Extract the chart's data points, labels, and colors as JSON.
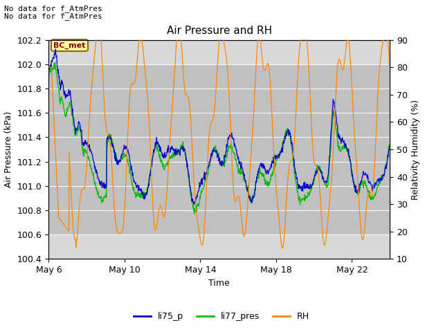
{
  "title": "Air Pressure and RH",
  "ylabel_left": "Air Pressure (kPa)",
  "ylabel_right": "Relativity Humidity (%)",
  "xlabel": "Time",
  "top_left_text_line1": "No data for f_AtmPres",
  "top_left_text_line2": "No data for f_AtmPres",
  "bc_met_label": "BC_met",
  "ylim_left": [
    100.4,
    102.2
  ],
  "ylim_right": [
    10,
    90
  ],
  "yticks_left": [
    100.4,
    100.6,
    100.8,
    101.0,
    101.2,
    101.4,
    101.6,
    101.8,
    102.0,
    102.2
  ],
  "yticks_right": [
    10,
    20,
    30,
    40,
    50,
    60,
    70,
    80,
    90
  ],
  "xtick_positions": [
    0,
    4,
    8,
    12,
    16
  ],
  "xtick_labels": [
    "May 6",
    "May 10",
    "May 14",
    "May 18",
    "May 22"
  ],
  "xlim": [
    0,
    18
  ],
  "color_li75": "#0000cc",
  "color_li77": "#00bb00",
  "color_rh": "#ff8800",
  "legend_labels": [
    "li75_p",
    "li77_pres",
    "RH"
  ],
  "background_color": "#ffffff",
  "plot_bg_outer": "#d8d8d8",
  "plot_bg_inner": "#c0c0c0",
  "grid_color": "#ffffff",
  "title_fontsize": 11,
  "label_fontsize": 9,
  "tick_fontsize": 9
}
